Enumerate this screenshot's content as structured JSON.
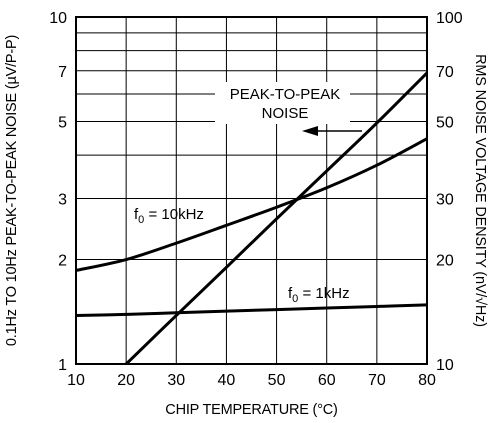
{
  "chart_data": {
    "type": "line",
    "title": "",
    "xlabel": "CHIP TEMPERATURE (°C)",
    "ylabel_left": "0.1Hz TO 10Hz PEAK-TO-PEAK NOISE (µV/P-P)",
    "ylabel_right": "RMS NOISE VOLTAGE DENSITY (nV/√Hz)",
    "x_ticks": [
      "10",
      "20",
      "30",
      "40",
      "50",
      "60",
      "70",
      "80"
    ],
    "y_left_ticks": [
      "1",
      "2",
      "3",
      "5",
      "7",
      "10"
    ],
    "y_right_ticks": [
      "10",
      "20",
      "30",
      "50",
      "70",
      "100"
    ],
    "xlim": [
      10,
      80
    ],
    "ylim_left": [
      1,
      10
    ],
    "ylim_right": [
      10,
      100
    ],
    "y_scale": "log",
    "grid": true,
    "series": [
      {
        "name": "PEAK-TO-PEAK NOISE",
        "axis": "left",
        "x": [
          20,
          30,
          40,
          50,
          60,
          70,
          80
        ],
        "y": [
          1.0,
          1.38,
          1.9,
          2.62,
          3.6,
          4.95,
          6.9
        ]
      },
      {
        "name": "f0 = 10kHz",
        "axis": "right",
        "x": [
          10,
          20,
          30,
          40,
          50,
          60,
          70,
          80
        ],
        "y": [
          18.6,
          20.0,
          22.3,
          25.1,
          28.3,
          32.2,
          37.4,
          44.6
        ]
      },
      {
        "name": "f0 = 1kHz",
        "axis": "right",
        "x": [
          10,
          20,
          30,
          40,
          50,
          60,
          70,
          80
        ],
        "y": [
          13.8,
          13.9,
          14.05,
          14.2,
          14.35,
          14.5,
          14.65,
          14.8
        ]
      }
    ],
    "annotations": {
      "ptp": {
        "line1": "PEAK-TO-PEAK",
        "line2": "NOISE"
      },
      "f10k": {
        "prefix": "f",
        "sub": "0",
        "suffix": " = 10kHz"
      },
      "f1k": {
        "prefix": "f",
        "sub": "0",
        "suffix": " = 1kHz"
      }
    }
  }
}
